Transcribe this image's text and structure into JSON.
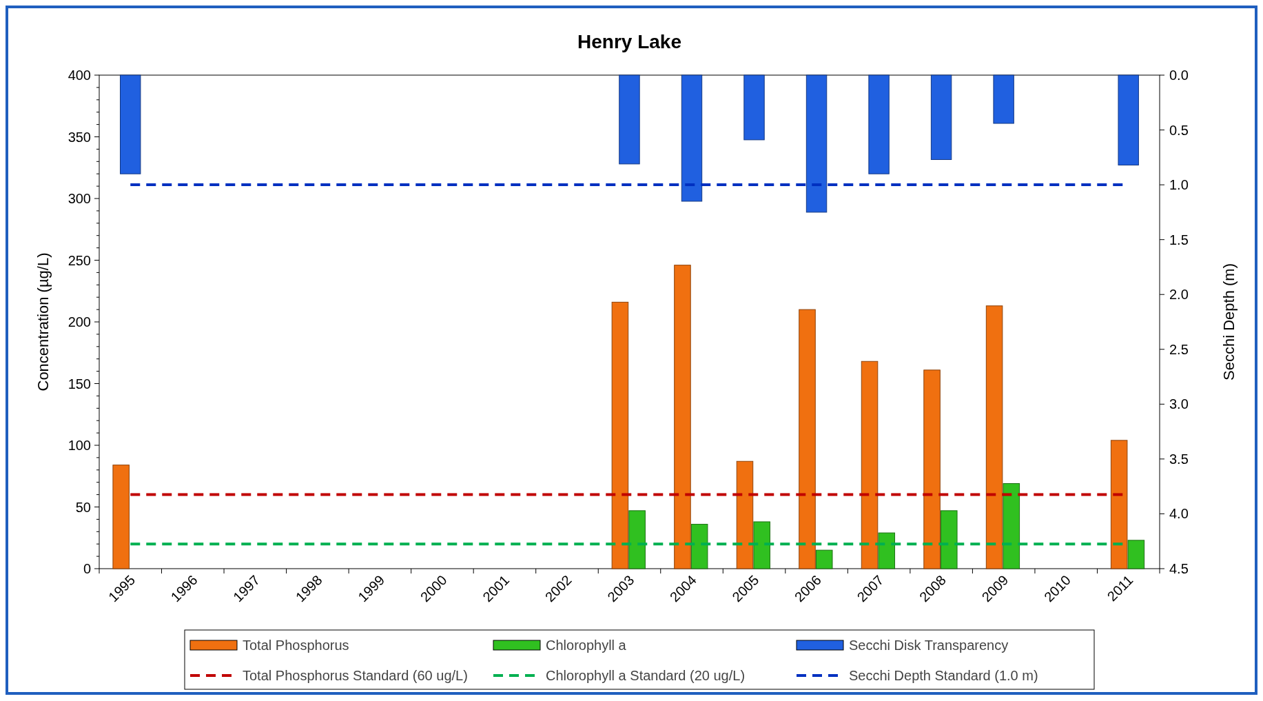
{
  "chart_data": {
    "type": "bar",
    "title": "Henry Lake",
    "ylabel": "Concentration (µg/L)",
    "y2label": "Secchi Depth (m)",
    "categories": [
      "1995",
      "1996",
      "1997",
      "1998",
      "1999",
      "2000",
      "2001",
      "2002",
      "2003",
      "2004",
      "2005",
      "2006",
      "2007",
      "2008",
      "2009",
      "2010",
      "2011"
    ],
    "series": [
      {
        "name": "Total Phosphorus",
        "color": "#f07010",
        "values": [
          84,
          null,
          null,
          null,
          null,
          null,
          null,
          null,
          216,
          246,
          87,
          210,
          168,
          161,
          213,
          null,
          104
        ]
      },
      {
        "name": "Chlorophyll a",
        "color": "#30c020",
        "values": [
          null,
          null,
          null,
          null,
          null,
          null,
          null,
          null,
          47,
          36,
          38,
          15,
          29,
          47,
          69,
          null,
          23
        ]
      },
      {
        "name": "Secchi Disk Transparency",
        "color": "#2060e0",
        "axis": "y2",
        "values": [
          0.9,
          null,
          null,
          null,
          null,
          null,
          null,
          null,
          0.81,
          1.15,
          0.59,
          1.25,
          0.9,
          0.77,
          0.44,
          null,
          0.82
        ]
      }
    ],
    "ylim": [
      0,
      400
    ],
    "yticks": [
      0,
      50,
      100,
      150,
      200,
      250,
      300,
      350,
      400
    ],
    "y2lim": [
      4.5,
      0
    ],
    "y2ticks": [
      {
        "value": 0,
        "label": "0.0"
      },
      {
        "value": 0.5,
        "label": "0.5"
      },
      {
        "value": 1,
        "label": "1.0"
      },
      {
        "value": 1.5,
        "label": "1.5"
      },
      {
        "value": 2,
        "label": "2.0"
      },
      {
        "value": 2.5,
        "label": "2.5"
      },
      {
        "value": 3,
        "label": "3.0"
      },
      {
        "value": 3.5,
        "label": "3.5"
      },
      {
        "value": 4,
        "label": "4.0"
      },
      {
        "value": 4.5,
        "label": "4.5"
      }
    ],
    "ref_lines": [
      {
        "axis": "y",
        "value": 60,
        "label": "Total Phosphorus Standard (60 ug/L)",
        "color": "#c00000",
        "line_style": "dashed"
      },
      {
        "axis": "y",
        "value": 20,
        "label": "Chlorophyll a Standard (20 ug/L)",
        "color": "#00b050",
        "line_style": "dashed"
      },
      {
        "axis": "y2",
        "value": 1,
        "label": "Secchi Depth Standard (1.0 m)",
        "color": "#0030c0",
        "line_style": "dashed"
      }
    ],
    "grid": false,
    "legend": "bottom"
  }
}
